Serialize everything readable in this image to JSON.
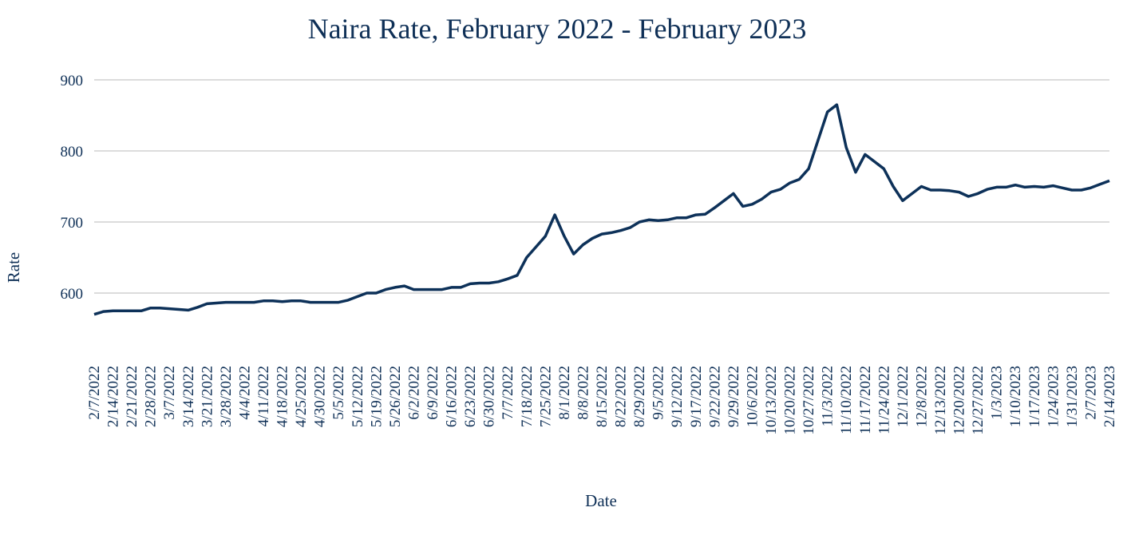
{
  "chart_data": {
    "type": "line",
    "title": "Naira Rate, February 2022 - February 2023",
    "x_label": "Date",
    "y_label": "Rate",
    "categories": [
      "2/7/2022",
      null,
      "2/14/2022",
      null,
      "2/21/2022",
      null,
      "2/28/2022",
      null,
      "3/7/2022",
      null,
      "3/14/2022",
      null,
      "3/21/2022",
      null,
      "3/28/2022",
      null,
      "4/4/2022",
      null,
      "4/11/2022",
      null,
      "4/18/2022",
      null,
      "4/25/2022",
      null,
      "4/30/2022",
      null,
      "5/5/2022",
      null,
      "5/12/2022",
      null,
      "5/19/2022",
      null,
      "5/26/2022",
      null,
      "6/2/2022",
      null,
      "6/9/2022",
      null,
      "6/16/2022",
      null,
      "6/23/2022",
      null,
      "6/30/2022",
      null,
      "7/7/2022",
      null,
      "7/18/2022",
      null,
      "7/25/2022",
      null,
      "8/1/2022",
      null,
      "8/8/2022",
      null,
      "8/15/2022",
      null,
      "8/22/2022",
      null,
      "8/29/2022",
      null,
      "9/5/2022",
      null,
      "9/12/2022",
      null,
      "9/17/2022",
      null,
      "9/22/2022",
      null,
      "9/29/2022",
      null,
      "10/6/2022",
      null,
      "10/13/2022",
      null,
      "10/20/2022",
      null,
      "10/27/2022",
      null,
      "11/3/2022",
      null,
      "11/10/2022",
      null,
      "11/17/2022",
      null,
      "11/24/2022",
      null,
      "12/1/2022",
      null,
      "12/8/2022",
      null,
      "12/13/2022",
      null,
      "12/20/2022",
      null,
      "12/27/2022",
      null,
      "1/3/2023",
      null,
      "1/10/2023",
      null,
      "1/17/2023",
      null,
      "1/24/2023",
      null,
      "1/31/2023",
      null,
      "2/7/2023",
      null,
      "2/14/2023"
    ],
    "series": [
      {
        "color": "#0d3159",
        "values": [
          570,
          574,
          575,
          575,
          575,
          575,
          579,
          579,
          578,
          577,
          576,
          580,
          585,
          586,
          587,
          587,
          587,
          587,
          589,
          589,
          588,
          589,
          589,
          587,
          587,
          587,
          587,
          590,
          595,
          600,
          600,
          605,
          608,
          610,
          605,
          605,
          605,
          605,
          608,
          608,
          613,
          614,
          614,
          616,
          620,
          625,
          650,
          665,
          680,
          710,
          680,
          655,
          668,
          677,
          683,
          685,
          688,
          692,
          700,
          703,
          702,
          703,
          706,
          706,
          710,
          711,
          720,
          730,
          740,
          722,
          725,
          732,
          742,
          746,
          755,
          760,
          775,
          815,
          855,
          865,
          805,
          770,
          795,
          785,
          775,
          750,
          730,
          740,
          750,
          745,
          745,
          744,
          742,
          736,
          740,
          746,
          749,
          749,
          752,
          749,
          750,
          749,
          751,
          748,
          745,
          745,
          748,
          753,
          758
        ]
      }
    ],
    "ylim": [
      530,
      900
    ],
    "yticks": [
      600,
      700,
      800,
      900
    ],
    "grid": true
  }
}
